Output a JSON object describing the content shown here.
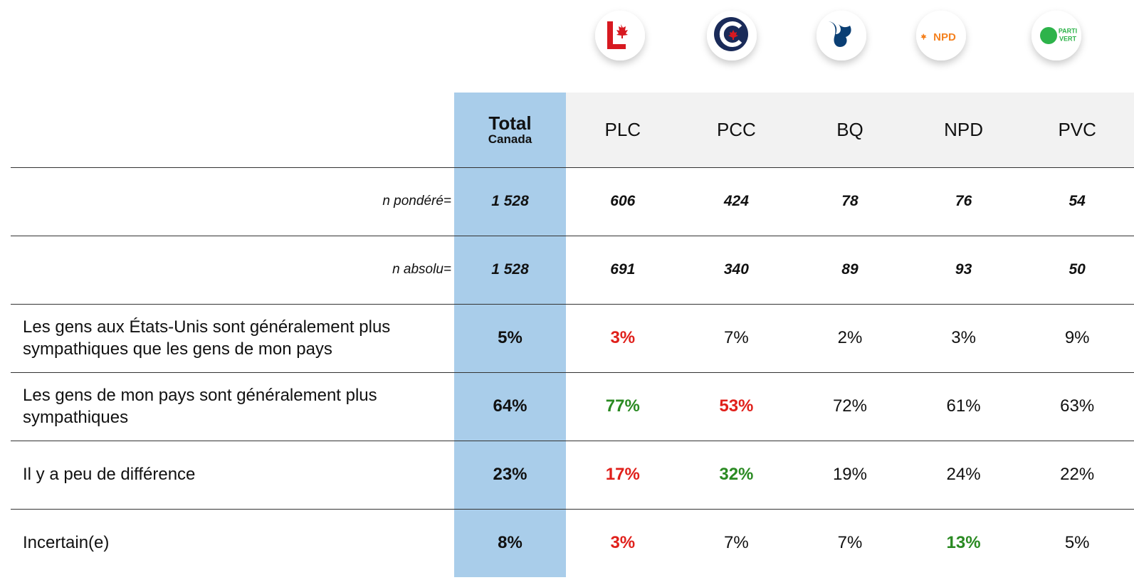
{
  "logo_texts": {
    "npd": "NPD",
    "vert_1": "PARTI",
    "vert_2": "VERT"
  },
  "table": {
    "header": {
      "total": "Total",
      "total_sub": "Canada",
      "columns": [
        "PLC",
        "PCC",
        "BQ",
        "NPD",
        "PVC"
      ]
    },
    "rows": [
      {
        "label": "n pondéré=",
        "kind": "n",
        "total": "1 528",
        "values": [
          "606",
          "424",
          "78",
          "76",
          "54"
        ],
        "highlight": [
          null,
          null,
          null,
          null,
          null
        ]
      },
      {
        "label": "n absolu=",
        "kind": "n",
        "total": "1 528",
        "values": [
          "691",
          "340",
          "89",
          "93",
          "50"
        ],
        "highlight": [
          null,
          null,
          null,
          null,
          null
        ]
      },
      {
        "label": "Les gens aux États-Unis sont généralement plus sympathiques que les gens de mon pays",
        "kind": "item",
        "total": "5%",
        "values": [
          "3%",
          "7%",
          "2%",
          "3%",
          "9%"
        ],
        "highlight": [
          "red",
          null,
          null,
          null,
          null
        ]
      },
      {
        "label": "Les gens de mon pays sont généralement plus sympathiques",
        "kind": "item",
        "total": "64%",
        "values": [
          "77%",
          "53%",
          "72%",
          "61%",
          "63%"
        ],
        "highlight": [
          "green",
          "red",
          null,
          null,
          null
        ]
      },
      {
        "label": "Il y a peu de différence",
        "kind": "item",
        "total": "23%",
        "values": [
          "17%",
          "32%",
          "19%",
          "24%",
          "22%"
        ],
        "highlight": [
          "red",
          "green",
          null,
          null,
          null
        ]
      },
      {
        "label": "Incertain(e)",
        "kind": "item",
        "total": "8%",
        "values": [
          "3%",
          "7%",
          "7%",
          "13%",
          "5%"
        ],
        "highlight": [
          "red",
          null,
          null,
          "green",
          null
        ]
      }
    ]
  }
}
